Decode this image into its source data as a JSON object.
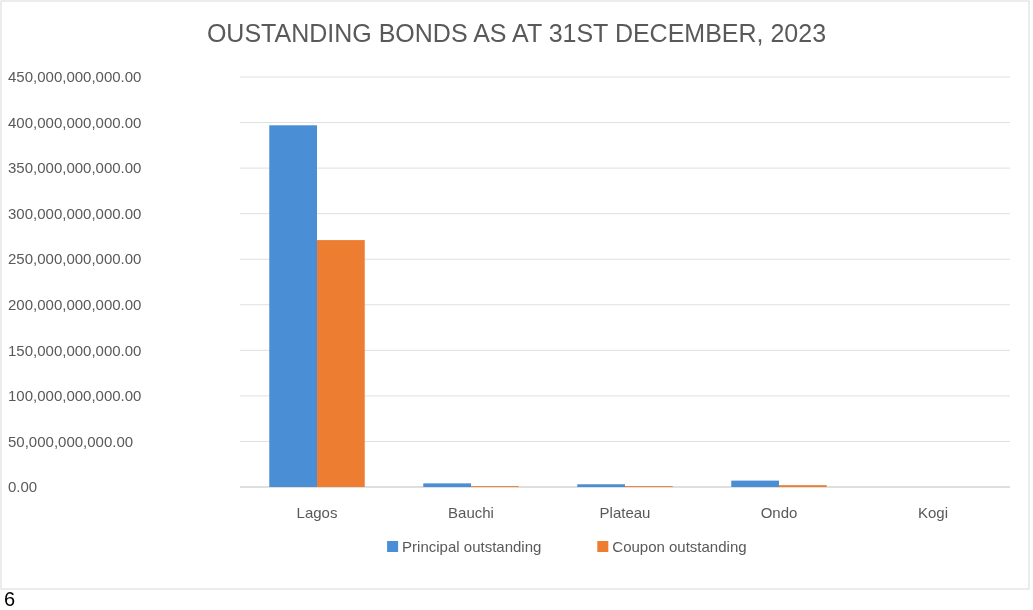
{
  "chart_data": {
    "type": "bar",
    "title": "OUSTANDING BONDS AS AT 31ST DECEMBER, 2023",
    "categories": [
      "Lagos",
      "Bauchi",
      "Plateau",
      "Ondo",
      "Kogi"
    ],
    "series": [
      {
        "name": "Principal outstanding",
        "color": "#4a8fd6",
        "values": [
          397000000000,
          4000000000,
          3000000000,
          7000000000,
          null
        ]
      },
      {
        "name": "Coupon outstanding",
        "color": "#ed7d31",
        "values": [
          271000000000,
          1000000000,
          1000000000,
          2000000000,
          null
        ]
      }
    ],
    "ylim": [
      0,
      450000000000
    ],
    "yticks": [
      {
        "value": 0,
        "label": "0.00"
      },
      {
        "value": 50000000000,
        "label": "50,000,000,000.00"
      },
      {
        "value": 100000000000,
        "label": "100,000,000,000.00"
      },
      {
        "value": 150000000000,
        "label": "150,000,000,000.00"
      },
      {
        "value": 200000000000,
        "label": "200,000,000,000.00"
      },
      {
        "value": 250000000000,
        "label": "250,000,000,000.00"
      },
      {
        "value": 300000000000,
        "label": "300,000,000,000.00"
      },
      {
        "value": 350000000000,
        "label": "350,000,000,000.00"
      },
      {
        "value": 400000000000,
        "label": "400,000,000,000.00"
      },
      {
        "value": 450000000000,
        "label": "450,000,000,000.00"
      }
    ],
    "grid": "y",
    "legend": "bottom",
    "annotations": [
      "6"
    ]
  }
}
